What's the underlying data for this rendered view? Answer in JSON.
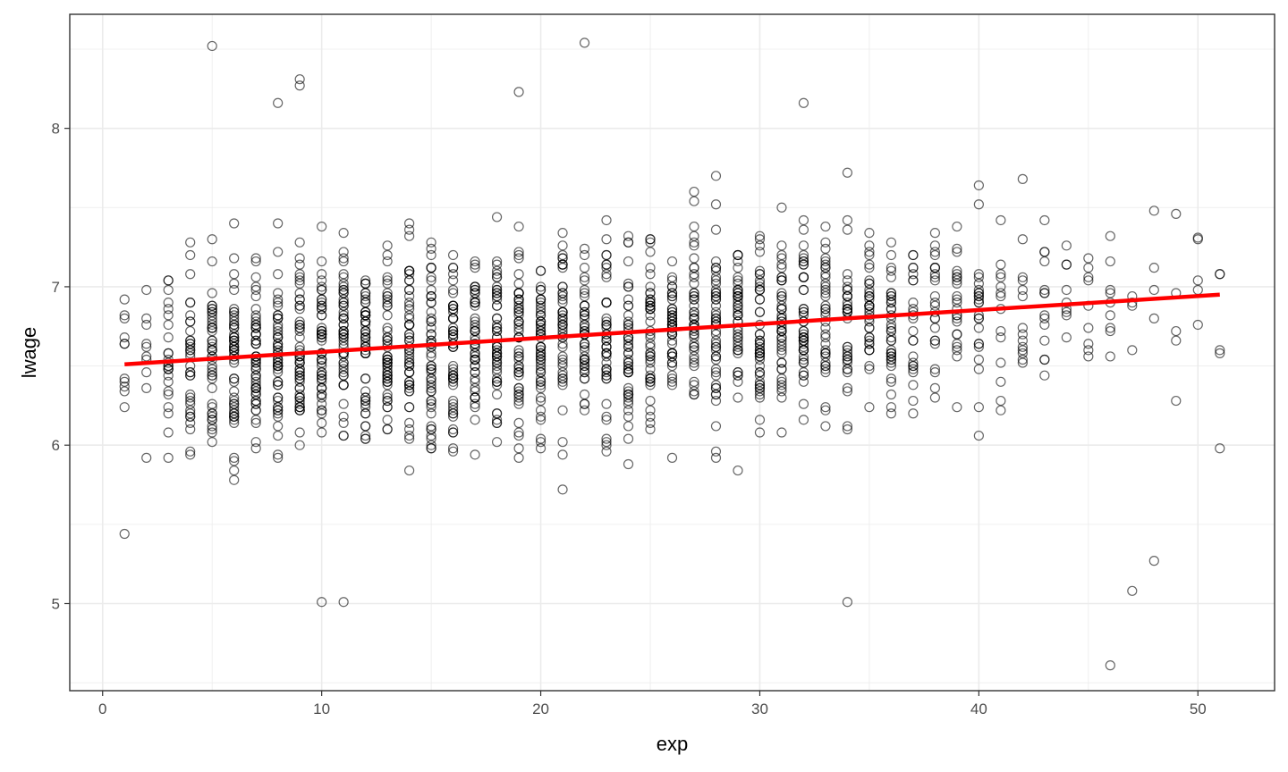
{
  "chart_data": {
    "type": "scatter",
    "title": "",
    "xlabel": "exp",
    "ylabel": "lwage",
    "xlim": [
      -1.5,
      53.5
    ],
    "ylim": [
      4.45,
      8.72
    ],
    "x_ticks": [
      0,
      10,
      20,
      30,
      40,
      50
    ],
    "y_ticks": [
      5,
      6,
      7,
      8
    ],
    "grid": true,
    "legend": "none",
    "colors": {
      "points": "#000000",
      "fit_line": "#ff0000",
      "grid": "#ebebeb",
      "panel_border": "#333333"
    },
    "points_summary": {
      "x_min": 1,
      "x_max": 51,
      "notable_points": [
        {
          "x": 5,
          "y": 8.52
        },
        {
          "x": 22,
          "y": 8.54
        },
        {
          "x": 9,
          "y": 8.31
        },
        {
          "x": 9,
          "y": 8.27
        },
        {
          "x": 8,
          "y": 8.16
        },
        {
          "x": 19,
          "y": 8.23
        },
        {
          "x": 32,
          "y": 8.16
        },
        {
          "x": 46,
          "y": 4.61
        },
        {
          "x": 47,
          "y": 5.08
        },
        {
          "x": 48,
          "y": 5.27
        },
        {
          "x": 34,
          "y": 5.01
        },
        {
          "x": 10,
          "y": 5.01
        },
        {
          "x": 11,
          "y": 5.01
        },
        {
          "x": 51,
          "y": 5.98
        },
        {
          "x": 50,
          "y": 7.31
        },
        {
          "x": 49,
          "y": 7.46
        },
        {
          "x": 1,
          "y": 6.37
        },
        {
          "x": 1,
          "y": 5.44
        }
      ]
    },
    "series": [
      {
        "type": "line",
        "x": [
          1,
          51
        ],
        "y": [
          6.51,
          6.95
        ]
      }
    ]
  }
}
